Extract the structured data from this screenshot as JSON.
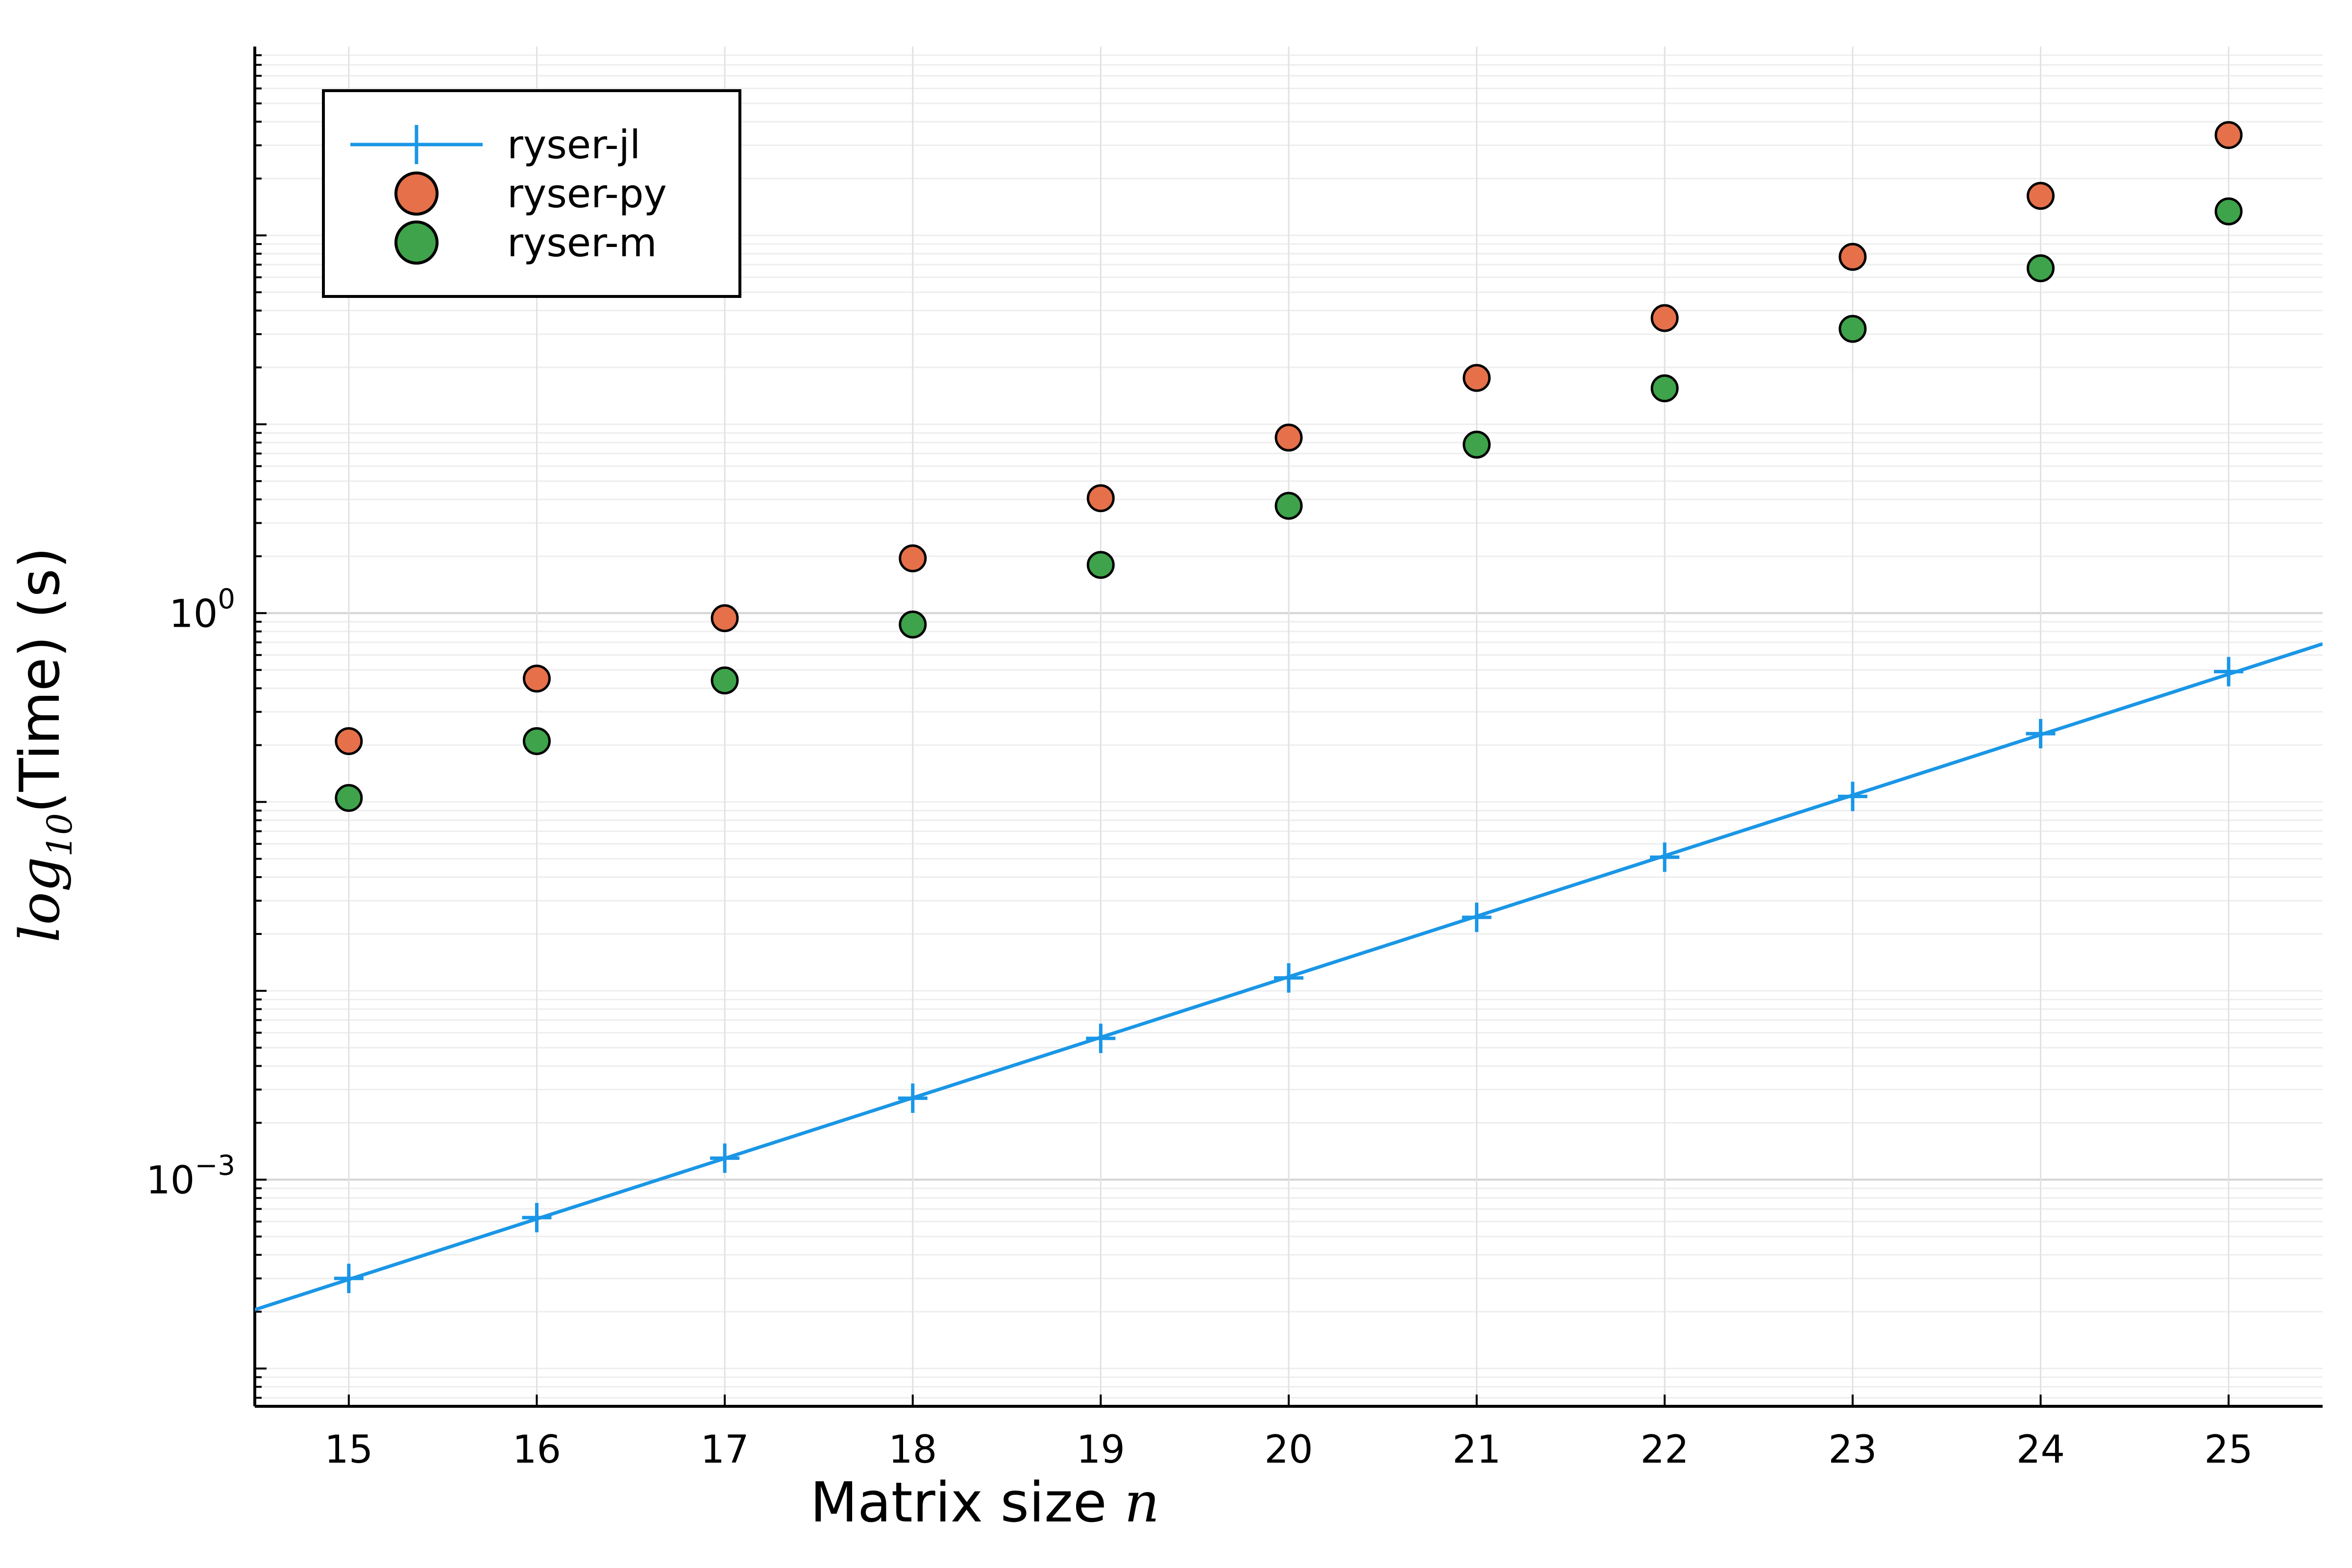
{
  "chart_data": {
    "type": "scatter",
    "xlabel": {
      "text": "Matrix size ",
      "math": "n"
    },
    "ylabel": {
      "prefix": "log",
      "subscript": "10",
      "suffix": "(Time) (s)"
    },
    "x_ticks": [
      "15",
      "16",
      "17",
      "18",
      "19",
      "20",
      "21",
      "22",
      "23",
      "24",
      "25"
    ],
    "y_ticks": [
      {
        "base": "10",
        "exp": "0",
        "value": 0
      },
      {
        "base": "10",
        "exp": "−3",
        "value": -3
      }
    ],
    "xlim": [
      14.5,
      25.5
    ],
    "ylim_log10": [
      -4.2,
      3.0
    ],
    "y_scale": "log10",
    "grid": true,
    "legend_position": "top-left",
    "series": [
      {
        "name": "ryser-jl",
        "style": "line+cross",
        "color": "#1a96e6",
        "x": [
          15,
          16,
          17,
          18,
          19,
          20,
          21,
          22,
          23,
          24,
          25
        ],
        "y": [
          0.0003,
          0.00063,
          0.0013,
          0.0027,
          0.0056,
          0.0117,
          0.0245,
          0.051,
          0.107,
          0.23,
          0.49
        ]
      },
      {
        "name": "ryser-py",
        "style": "marker",
        "color": "#e5704a",
        "x": [
          15,
          16,
          17,
          18,
          19,
          20,
          21,
          22,
          23,
          24,
          25
        ],
        "y": [
          0.21,
          0.45,
          0.94,
          1.95,
          4.06,
          8.5,
          17.6,
          36.5,
          77,
          162,
          340
        ]
      },
      {
        "name": "ryser-m",
        "style": "marker",
        "color": "#3ea34a",
        "x": [
          15,
          16,
          17,
          18,
          19,
          20,
          21,
          22,
          23,
          24,
          25
        ],
        "y": [
          0.105,
          0.21,
          0.44,
          0.87,
          1.8,
          3.7,
          7.8,
          15.5,
          32,
          67,
          134
        ]
      }
    ]
  }
}
